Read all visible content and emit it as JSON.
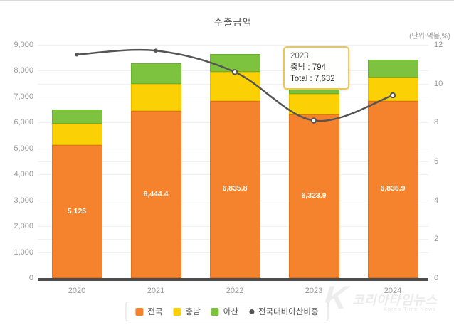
{
  "chart": {
    "title": "수출금액",
    "unit_label": "(단위:억불,%)",
    "tooltip": {
      "title": "2023",
      "lines": [
        "충남 : 794",
        "Total : 7,632"
      ]
    },
    "watermark": {
      "k": "K",
      "name": "코리아타임뉴스",
      "subname": "Korea Time News"
    },
    "colors": {
      "axis_text": "#9a9a9a",
      "grid": "#f1f1f1",
      "baseline": "#4d4d4d",
      "tooltip_border": "#ecc94e",
      "line": "#555555",
      "bar_label_text": "#fffef2"
    }
  },
  "chart_data": {
    "type": "bar",
    "subtype": "stacked-bars-with-line-overlay",
    "title": "수출금액",
    "unit": "(단위:억불,%)",
    "categories": [
      "2020",
      "2021",
      "2022",
      "2023",
      "2024"
    ],
    "series": [
      {
        "key": "jeonguk",
        "name": "전국",
        "type": "bar",
        "axis": "left",
        "color": "#f5822d",
        "border": "#e2701c",
        "values": [
          5125,
          6444.4,
          6835.8,
          6323.9,
          6836.9
        ],
        "labels": [
          "5,125",
          "6,444.4",
          "6,835.8",
          "6,323.9",
          "6,836.9"
        ]
      },
      {
        "key": "chungnam",
        "name": "충남",
        "type": "bar",
        "axis": "left",
        "color": "#fbd105",
        "border": "#e5bc00",
        "values": [
          830,
          1050,
          1120,
          794,
          900
        ]
      },
      {
        "key": "asan",
        "name": "아산",
        "type": "bar",
        "axis": "left",
        "color": "#7dc340",
        "border": "#69b22c",
        "values": [
          550,
          795,
          690,
          514,
          685
        ]
      },
      {
        "key": "ratio",
        "name": "전국대비아산비중",
        "type": "line",
        "axis": "right",
        "color": "#555555",
        "values": [
          11.5,
          11.7,
          10.6,
          8.1,
          9.4
        ],
        "point_styles": [
          "solid",
          "solid",
          "hollow",
          "hollow",
          "hollow"
        ]
      }
    ],
    "left_axis": {
      "min": 0,
      "max": 9000,
      "step": 1000,
      "tick_labels": [
        "0",
        "1,000",
        "2,000",
        "3,000",
        "4,000",
        "5,000",
        "6,000",
        "7,000",
        "8,000",
        "9,000"
      ]
    },
    "right_axis": {
      "min": 0,
      "max": 12,
      "step": 2,
      "tick_labels": [
        "0",
        "2",
        "4",
        "6",
        "8",
        "10",
        "12"
      ]
    },
    "legend": {
      "position": "bottom"
    },
    "grid": "on",
    "tooltip_target": {
      "category": "2023",
      "chungnam": 794,
      "total": 7632
    }
  }
}
